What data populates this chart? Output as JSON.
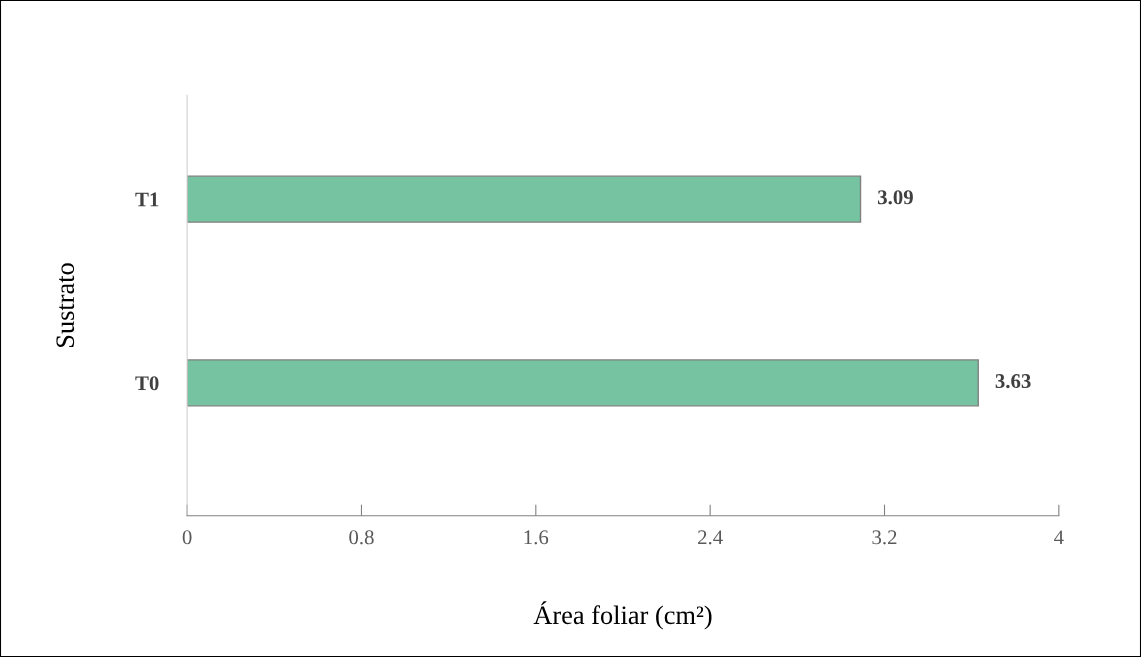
{
  "chart_data": {
    "type": "bar",
    "orientation": "horizontal",
    "xlabel": "Área foliar (cm²)",
    "ylabel": "Sustrato",
    "categories": [
      "T1",
      "T0"
    ],
    "values": [
      3.09,
      3.63
    ],
    "color": "#75c3a1",
    "xlim": [
      0,
      4
    ],
    "xticks": [
      0,
      0.8,
      1.6,
      2.4,
      3.2,
      4
    ],
    "data_labels": true,
    "grid": false,
    "legend": false
  }
}
